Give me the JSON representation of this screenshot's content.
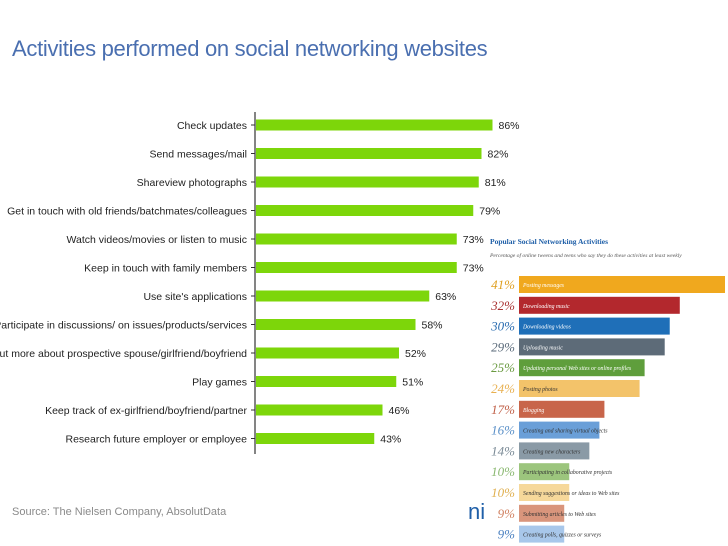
{
  "title": "Activities performed on social networking websites",
  "source": "Source: The Nielsen Company, AbsolutData",
  "colors": {
    "title": "#4a6fb0",
    "main_bar": "#7dd60a",
    "axis": "#333333"
  },
  "logo_text": "ni",
  "chart_data": [
    {
      "type": "bar",
      "orientation": "horizontal",
      "title": "Activities performed on social networking websites",
      "value_suffix": "%",
      "categories": [
        "Check updates",
        "Send messages/mail",
        "Shareview photographs",
        "Get in touch with old friends/batchmates/colleagues",
        "Watch videos/movies or listen to music",
        "Keep in touch with family members",
        "Use site's applications",
        "Participate in discussions/ on issues/products/services",
        "Find out more about prospective spouse/girlfriend/boyfriend",
        "Play games",
        "Keep track of ex-girlfriend/boyfriend/partner",
        "Research future employer or employee"
      ],
      "values": [
        86,
        82,
        81,
        79,
        73,
        73,
        63,
        58,
        52,
        51,
        46,
        43
      ],
      "labels": [
        "86%",
        "82%",
        "81%",
        "79%",
        "73%",
        "73%",
        "63%",
        "58%",
        "52%",
        "51%",
        "46%",
        "43%"
      ],
      "xlim": [
        0,
        100
      ],
      "grid": false
    },
    {
      "type": "bar",
      "orientation": "horizontal",
      "title": "Popular Social Networking Activities",
      "subtitle": "Percentage of online tweens and teens who say they do these activities at least weekly",
      "categories": [
        "Posting messages",
        "Downloading music",
        "Downloading videos",
        "Uploading music",
        "Updating personal Web sites or online profiles",
        "Posting photos",
        "Blogging",
        "Creating and sharing virtual objects",
        "Creating new characters",
        "Participating in collaborative projects",
        "Sending suggestions or ideas to Web sites",
        "Submitting articles to Web sites",
        "Creating polls, quizzes or surveys"
      ],
      "values": [
        41,
        32,
        30,
        29,
        25,
        24,
        17,
        16,
        14,
        10,
        10,
        9,
        9
      ],
      "labels": [
        "41%",
        "32%",
        "30%",
        "29%",
        "25%",
        "24%",
        "17%",
        "16%",
        "14%",
        "10%",
        "10%",
        "9%",
        "9%"
      ],
      "colors": [
        "#f0a81e",
        "#b3282d",
        "#1f6fb8",
        "#5d6b78",
        "#5f9e3c",
        "#f3c36a",
        "#c8654a",
        "#6a9fd8",
        "#8a9aa6",
        "#9cc57d",
        "#f6d89a",
        "#d9957c",
        "#a8c7ea"
      ],
      "label_colors": [
        "#e0a020",
        "#a83030",
        "#2a6cb0",
        "#5a6a7a",
        "#6a9a40",
        "#e8b050",
        "#c06048",
        "#5a90c8",
        "#7a8a96",
        "#8ab870",
        "#e0b050",
        "#d08060",
        "#4a80c0"
      ],
      "xlim": [
        0,
        41
      ]
    }
  ]
}
